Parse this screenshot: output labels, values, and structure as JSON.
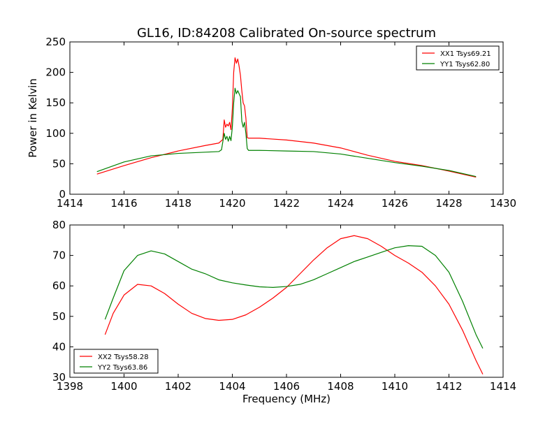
{
  "figure": {
    "title": "GL16, ID:84208 Calibrated On-source spectrum"
  },
  "chart_data": [
    {
      "type": "line",
      "title": "GL16, ID:84208 Calibrated On-source spectrum",
      "xlabel": "",
      "ylabel": "Power in Kelvin",
      "xlim": [
        1414,
        1430
      ],
      "ylim": [
        0,
        250
      ],
      "xticks": [
        1414,
        1416,
        1418,
        1420,
        1422,
        1424,
        1426,
        1428,
        1430
      ],
      "yticks": [
        0,
        50,
        100,
        150,
        200,
        250
      ],
      "legend_position": "top-right",
      "grid": false,
      "series": [
        {
          "name": "XX1 Tsys69.21",
          "color": "#ff0000",
          "x": [
            1415.0,
            1416.0,
            1417.0,
            1418.0,
            1419.0,
            1419.5,
            1419.65,
            1419.7,
            1419.75,
            1419.8,
            1419.85,
            1419.9,
            1419.95,
            1420.0,
            1420.05,
            1420.1,
            1420.15,
            1420.2,
            1420.25,
            1420.3,
            1420.35,
            1420.4,
            1420.45,
            1420.5,
            1420.55,
            1420.6,
            1421.0,
            1422.0,
            1423.0,
            1424.0,
            1425.0,
            1426.0,
            1427.0,
            1428.0,
            1429.0
          ],
          "y": [
            33,
            47,
            60,
            71,
            80,
            84,
            90,
            122,
            110,
            115,
            112,
            118,
            106,
            140,
            200,
            224,
            215,
            222,
            210,
            195,
            170,
            150,
            145,
            125,
            93,
            92,
            92,
            89,
            84,
            76,
            64,
            54,
            47,
            38,
            28
          ]
        },
        {
          "name": "YY1 Tsys62.80",
          "color": "#008000",
          "x": [
            1415.0,
            1416.0,
            1417.0,
            1418.0,
            1419.0,
            1419.5,
            1419.6,
            1419.7,
            1419.75,
            1419.8,
            1419.85,
            1419.9,
            1419.95,
            1420.0,
            1420.05,
            1420.1,
            1420.15,
            1420.2,
            1420.3,
            1420.35,
            1420.4,
            1420.45,
            1420.5,
            1420.55,
            1420.6,
            1421.0,
            1422.0,
            1423.0,
            1424.0,
            1425.0,
            1426.0,
            1427.0,
            1428.0,
            1429.0
          ],
          "y": [
            37,
            53,
            63,
            67,
            69,
            70,
            73,
            100,
            90,
            95,
            87,
            95,
            88,
            110,
            150,
            174,
            165,
            170,
            160,
            120,
            110,
            118,
            100,
            75,
            72,
            72,
            71,
            70,
            66,
            59,
            52,
            46,
            39,
            29
          ]
        }
      ]
    },
    {
      "type": "line",
      "title": "",
      "xlabel": "Frequency (MHz)",
      "ylabel": "",
      "xlim": [
        1398,
        1414
      ],
      "ylim": [
        30,
        80
      ],
      "xticks": [
        1398,
        1400,
        1402,
        1404,
        1406,
        1408,
        1410,
        1412,
        1414
      ],
      "yticks": [
        30,
        40,
        50,
        60,
        70,
        80
      ],
      "legend_position": "bottom-left",
      "grid": false,
      "series": [
        {
          "name": "XX2 Tsys58.28",
          "color": "#ff0000",
          "x": [
            1399.3,
            1399.6,
            1400.0,
            1400.5,
            1401.0,
            1401.5,
            1402.0,
            1402.5,
            1403.0,
            1403.5,
            1404.0,
            1404.5,
            1405.0,
            1405.5,
            1406.0,
            1406.5,
            1407.0,
            1407.5,
            1408.0,
            1408.5,
            1409.0,
            1409.5,
            1410.0,
            1410.5,
            1411.0,
            1411.5,
            1412.0,
            1412.5,
            1413.0,
            1413.25
          ],
          "y": [
            44,
            51,
            57,
            60.5,
            60,
            57.5,
            54,
            51,
            49.3,
            48.7,
            49,
            50.5,
            53,
            56,
            59.5,
            64,
            68.5,
            72.5,
            75.5,
            76.5,
            75.5,
            73,
            70,
            67.5,
            64.5,
            60,
            54,
            45.5,
            35.5,
            31
          ]
        },
        {
          "name": "YY2 Tsys63.86",
          "color": "#008000",
          "x": [
            1399.3,
            1399.6,
            1400.0,
            1400.5,
            1401.0,
            1401.5,
            1402.0,
            1402.5,
            1403.0,
            1403.5,
            1404.0,
            1404.5,
            1405.0,
            1405.5,
            1406.0,
            1406.5,
            1407.0,
            1407.5,
            1408.0,
            1408.5,
            1409.0,
            1409.5,
            1410.0,
            1410.5,
            1411.0,
            1411.5,
            1412.0,
            1412.5,
            1413.0,
            1413.25
          ],
          "y": [
            49,
            56,
            65,
            70,
            71.5,
            70.5,
            68,
            65.5,
            64,
            62,
            61,
            60.3,
            59.7,
            59.5,
            59.8,
            60.5,
            62,
            64,
            66,
            68,
            69.5,
            71,
            72.5,
            73.2,
            73,
            70,
            64.5,
            55,
            44,
            39.5
          ]
        }
      ]
    }
  ]
}
